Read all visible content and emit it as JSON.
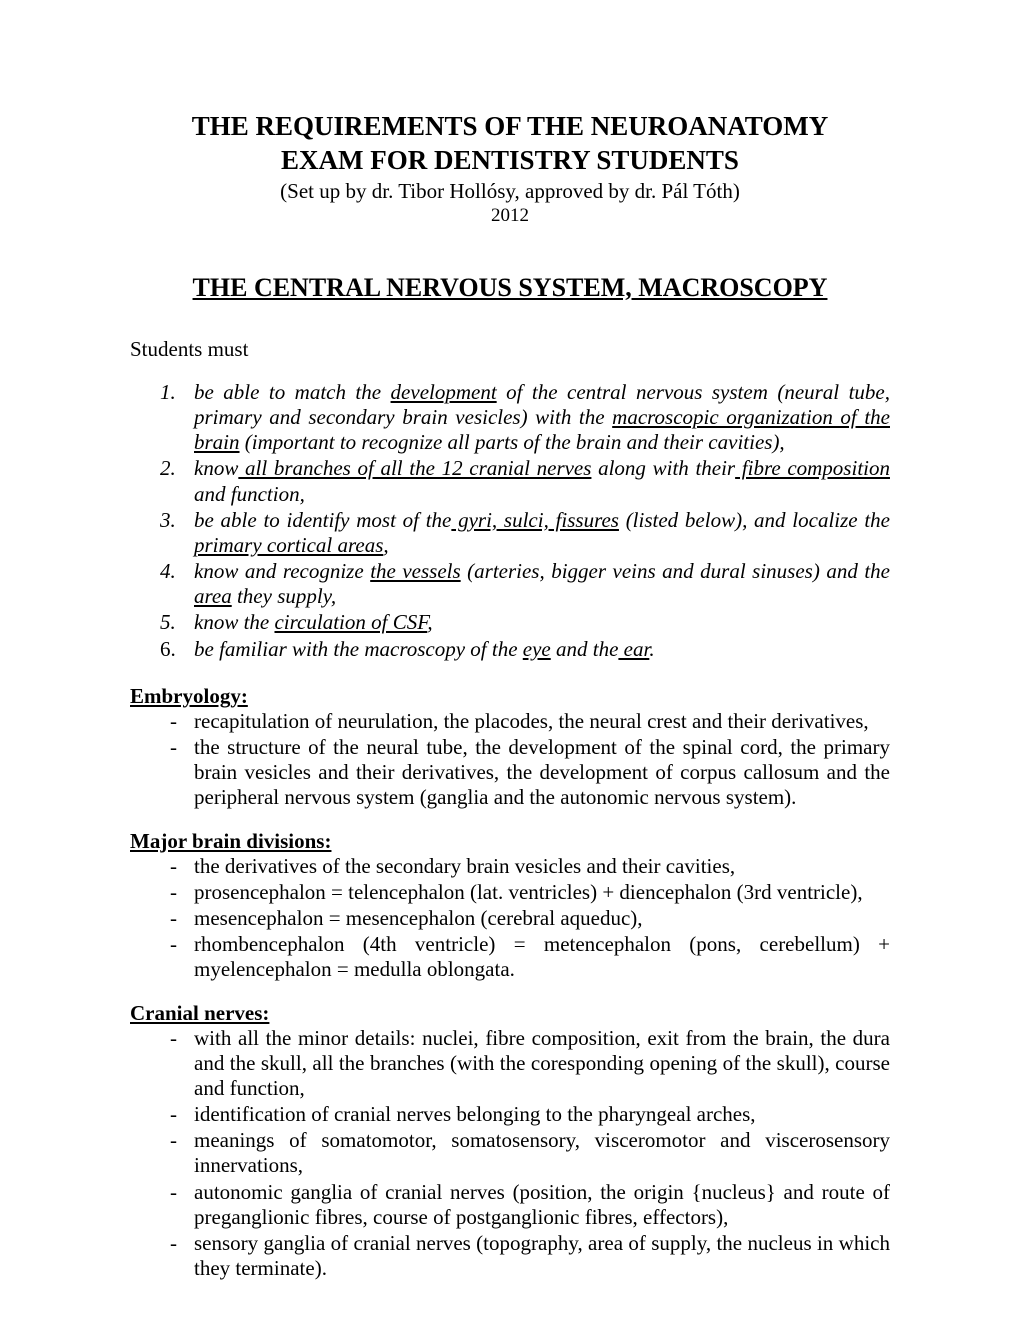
{
  "title_line1": "THE REQUIREMENTS OF THE NEUROANATOMY",
  "title_line2": "EXAM FOR DENTISTRY STUDENTS",
  "subtitle": "(Set up by dr. Tibor Hollósy, approved by dr. Pál Tóth)",
  "year": "2012",
  "section_title": "THE CENTRAL NERVOUS SYSTEM, MACROSCOPY",
  "intro": "Students must",
  "numbered": [
    {
      "num": "1.",
      "pre": "be able to match the ",
      "u1": "development",
      "mid1": " of the central nervous system (neural tube, primary and secondary brain vesicles) with the ",
      "u2": "macroscopic organization of the brain",
      "post": " (important to recognize all parts of the brain and their cavities),"
    },
    {
      "num": "2.",
      "pre": "know",
      "u1": " all branches of all the 12 cranial nerves",
      "mid1": " along with their",
      "u2": " fibre composition",
      "post": " and function,"
    },
    {
      "num": "3.",
      "pre": "be able to identify most of the",
      "u1": " gyri, sulci, fissures",
      "mid1": " (listed below), and localize the ",
      "u2": "primary cortical areas",
      "post": ","
    },
    {
      "num": "4.",
      "pre": "know and recognize ",
      "u1": "the vessels",
      "mid1": " (arteries, bigger veins and dural sinuses) and the ",
      "u2": "area",
      "post": " they supply,"
    },
    {
      "num": "5.",
      "pre": "know the ",
      "u1": "circulation of CSF",
      "mid1": ",",
      "u2": "",
      "post": ""
    },
    {
      "num": "6.",
      "roman": true,
      "pre": "be familiar with the macroscopy of the ",
      "u1": "eye",
      "mid1": " and the",
      "u2": " ear",
      "post": "."
    }
  ],
  "sections": [
    {
      "head": "Embryology:",
      "items": [
        "recapitulation of neurulation, the placodes, the neural crest and their derivatives,",
        "the structure of the neural tube, the development of the spinal cord, the primary brain vesicles and their derivatives, the development of corpus callosum and the peripheral nervous system (ganglia and the autonomic nervous system)."
      ]
    },
    {
      "head": "Major brain divisions:",
      "items": [
        "the derivatives of the secondary brain vesicles and their cavities,",
        "prosencephalon = telencephalon (lat. ventricles) + diencephalon (3rd ventricle),",
        "mesencephalon = mesencephalon (cerebral aqueduc),",
        "rhombencephalon (4th ventricle) = metencephalon (pons, cerebellum) + myelencephalon =  medulla oblongata."
      ]
    },
    {
      "head": "Cranial nerves:",
      "items": [
        "with all the minor details: nuclei, fibre composition, exit from the brain, the dura and the skull, all the branches (with the coresponding opening of the skull), course and function,",
        "identification of cranial nerves belonging to the pharyngeal arches,",
        "meanings of somatomotor, somatosensory, visceromotor and viscerosensory innervations,",
        "autonomic ganglia of cranial nerves (position, the origin {nucleus} and route of preganglionic fibres, course of  postganglionic fibres, effectors),",
        "sensory ganglia of cranial nerves (topography, area of supply, the nucleus in which they terminate)."
      ]
    }
  ]
}
